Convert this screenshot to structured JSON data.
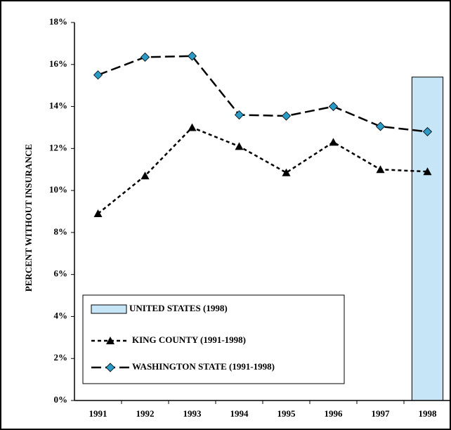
{
  "chart_data": {
    "type": "line",
    "y_label": "PERCENT WITHOUT INSURANCE",
    "categories": [
      "1991",
      "1992",
      "1993",
      "1994",
      "1995",
      "1996",
      "1997",
      "1998"
    ],
    "ylim": [
      0,
      18
    ],
    "yticks": [
      {
        "value": 0,
        "label": "0%"
      },
      {
        "value": 2,
        "label": "2%"
      },
      {
        "value": 4,
        "label": "4%"
      },
      {
        "value": 6,
        "label": "6%"
      },
      {
        "value": 8,
        "label": "8%"
      },
      {
        "value": 10,
        "label": "10%"
      },
      {
        "value": 12,
        "label": "12%"
      },
      {
        "value": 14,
        "label": "14%"
      },
      {
        "value": 16,
        "label": "16%"
      },
      {
        "value": 18,
        "label": "18%"
      }
    ],
    "series": [
      {
        "name": "UNITED STATES (1998)",
        "type": "bar",
        "color": "#c6e6f8",
        "values": [
          null,
          null,
          null,
          null,
          null,
          null,
          null,
          15.4
        ]
      },
      {
        "name": "KING COUNTY (1991-1998)",
        "type": "line",
        "marker": "triangle",
        "color": "#000000",
        "values": [
          8.9,
          10.7,
          13.0,
          12.1,
          10.85,
          12.3,
          11.0,
          10.9
        ]
      },
      {
        "name": "WASHINGTON STATE (1991-1998)",
        "type": "line",
        "marker": "diamond",
        "color": "#2a9ac6",
        "values": [
          15.5,
          16.35,
          16.4,
          13.6,
          13.55,
          14.0,
          13.05,
          12.8
        ]
      }
    ]
  }
}
